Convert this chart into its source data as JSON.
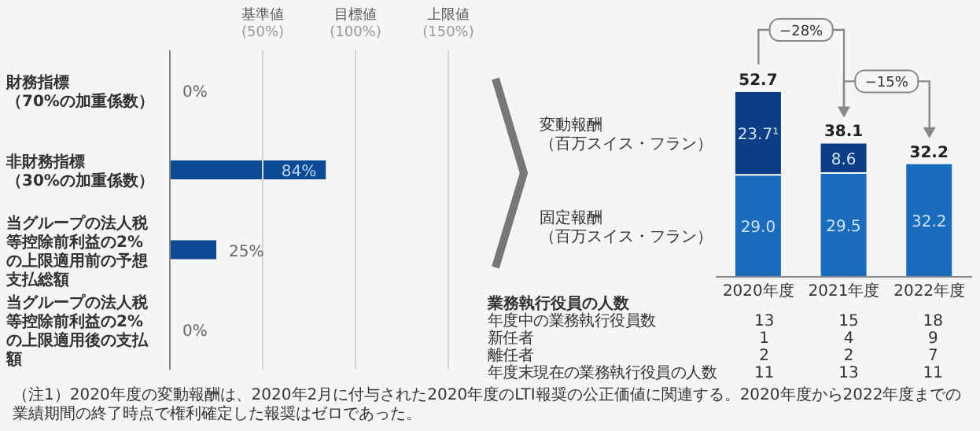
{
  "chart_data": [
    {
      "type": "bar",
      "orientation": "horizontal",
      "categories": [
        "財務指標（70%の加重係数）",
        "非財務指標（30%の加重係数）",
        "当グループの法人税等控除前利益の2%の上限適用前の予想支払総額",
        "当グループの法人税等控除前利益の2%の上限適用後の支払額"
      ],
      "values": [
        0,
        84,
        25,
        0
      ],
      "value_labels": [
        "0%",
        "84%",
        "25%",
        "0%"
      ],
      "color": "#0d4a94",
      "tick_labels": "y",
      "ref_lines": [
        {
          "axis": "x",
          "value": 50,
          "label": "基準値\n(50%)"
        },
        {
          "axis": "x",
          "value": 100,
          "label": "目標値\n(100%)"
        },
        {
          "axis": "x",
          "value": 150,
          "label": "上限値\n(150%)"
        }
      ]
    },
    {
      "type": "bar",
      "stacked": true,
      "categories": [
        "2020年度",
        "2021年度",
        "2022年度"
      ],
      "tick_labels": "x",
      "series": [
        {
          "name": "固定報酬（百万スイス・フラン）",
          "color": "#1a6cbc",
          "values": [
            29.0,
            29.5,
            32.2
          ],
          "value_labels": [
            "29.0",
            "29.5",
            "32.2"
          ]
        },
        {
          "name": "変動報酬（百万スイス・フラン）",
          "color": "#0c3d85",
          "values": [
            23.7,
            8.6,
            null
          ],
          "value_labels": [
            "23.7¹",
            "8.6",
            null
          ]
        }
      ],
      "totals": [
        "52.7",
        "38.1",
        "32.2"
      ],
      "annotations": [
        "−28%",
        "−15%"
      ]
    },
    {
      "type": "heatmap",
      "title": "業務執行役員の人数",
      "categories": [
        null,
        null,
        null
      ],
      "y_categories": [
        "年度中の業務執行役員数",
        "新任者",
        "離任者",
        "年度末現在の業務執行役員の人数"
      ],
      "data_labels": true,
      "cells": [
        [
          13,
          15,
          18
        ],
        [
          1,
          4,
          9
        ],
        [
          2,
          2,
          7
        ],
        [
          11,
          13,
          11
        ]
      ],
      "annotations": [
        "（注1）2020年度の変動報酬は、2020年2月に付与された2020年度のLTI報奨の公正価値に関連する。2020年度から2022年度までの業績期間の終了時点で権利確定した報奨はゼロであった。"
      ]
    }
  ]
}
